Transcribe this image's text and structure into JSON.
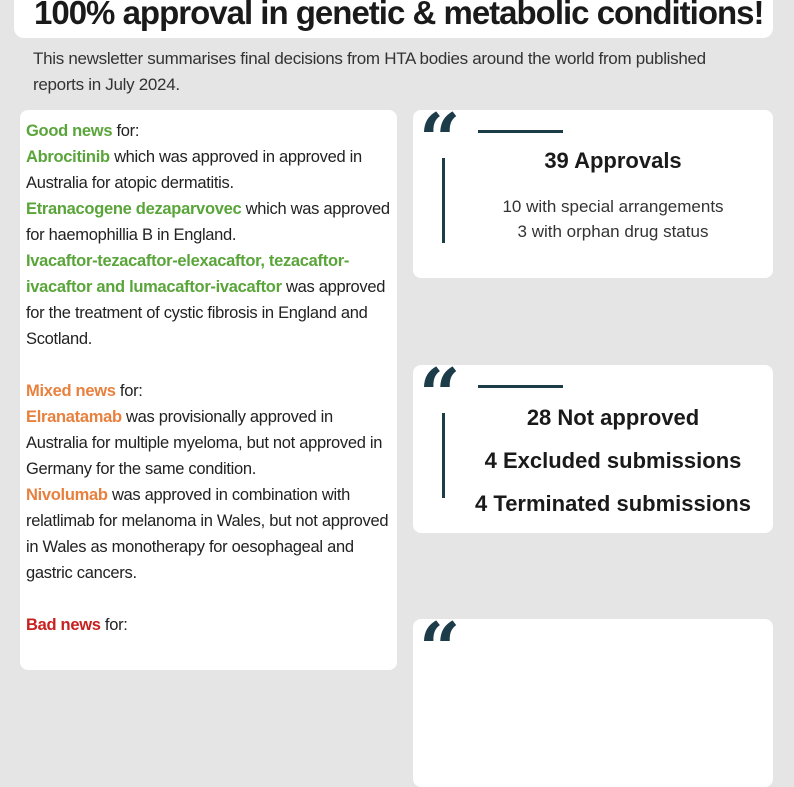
{
  "header": {
    "title": "100% approval in genetic & metabolic conditions!",
    "intro": "This newsletter summarises final decisions from HTA bodies around the world from published reports in July 2024."
  },
  "news": {
    "good": {
      "heading": "Good news",
      " for": " for:",
      "label_for": " for:",
      "items": [
        {
          "drug": "Abrocitinib",
          "text": " which was approved in approved in Australia for atopic dermatitis."
        },
        {
          "drug": "Etranacogene dezaparvovec",
          "text": " which was approved for haemophillia B in England."
        },
        {
          "drug": "Ivacaftor-tezacaftor-elexacaftor, tezacaftor-ivacaftor and lumacaftor-ivacaftor",
          "text": " was approved for the treatment of cystic fibrosis in England and Scotland."
        }
      ]
    },
    "mixed": {
      "heading": "Mixed news",
      "label_for": " for:",
      "items": [
        {
          "drug": "Elranatamab",
          "text": " was provisionally approved in Australia for multiple myeloma, but not approved in Germany for the same condition."
        },
        {
          "drug": "Nivolumab",
          "text": " was approved in combination with relatlimab for melanoma in Wales, but not approved in Wales as monotherapy for oesophageal and gastric cancers."
        }
      ]
    },
    "bad": {
      "heading": "Bad news",
      "label_for": " for:"
    }
  },
  "stats": {
    "approvals": {
      "main": "39 Approvals",
      "sub1": "10 with special arrangements",
      "sub2": "3 with orphan drug status"
    },
    "not_approved": {
      "line1": "28 Not approved",
      "line2": "4 Excluded submissions",
      "line3": "4 Terminated submissions"
    },
    "quote_glyph": "“"
  },
  "colors": {
    "good": "#5aa53a",
    "mixed": "#e8803e",
    "bad": "#c8201e",
    "accent": "#1d3c4a"
  }
}
